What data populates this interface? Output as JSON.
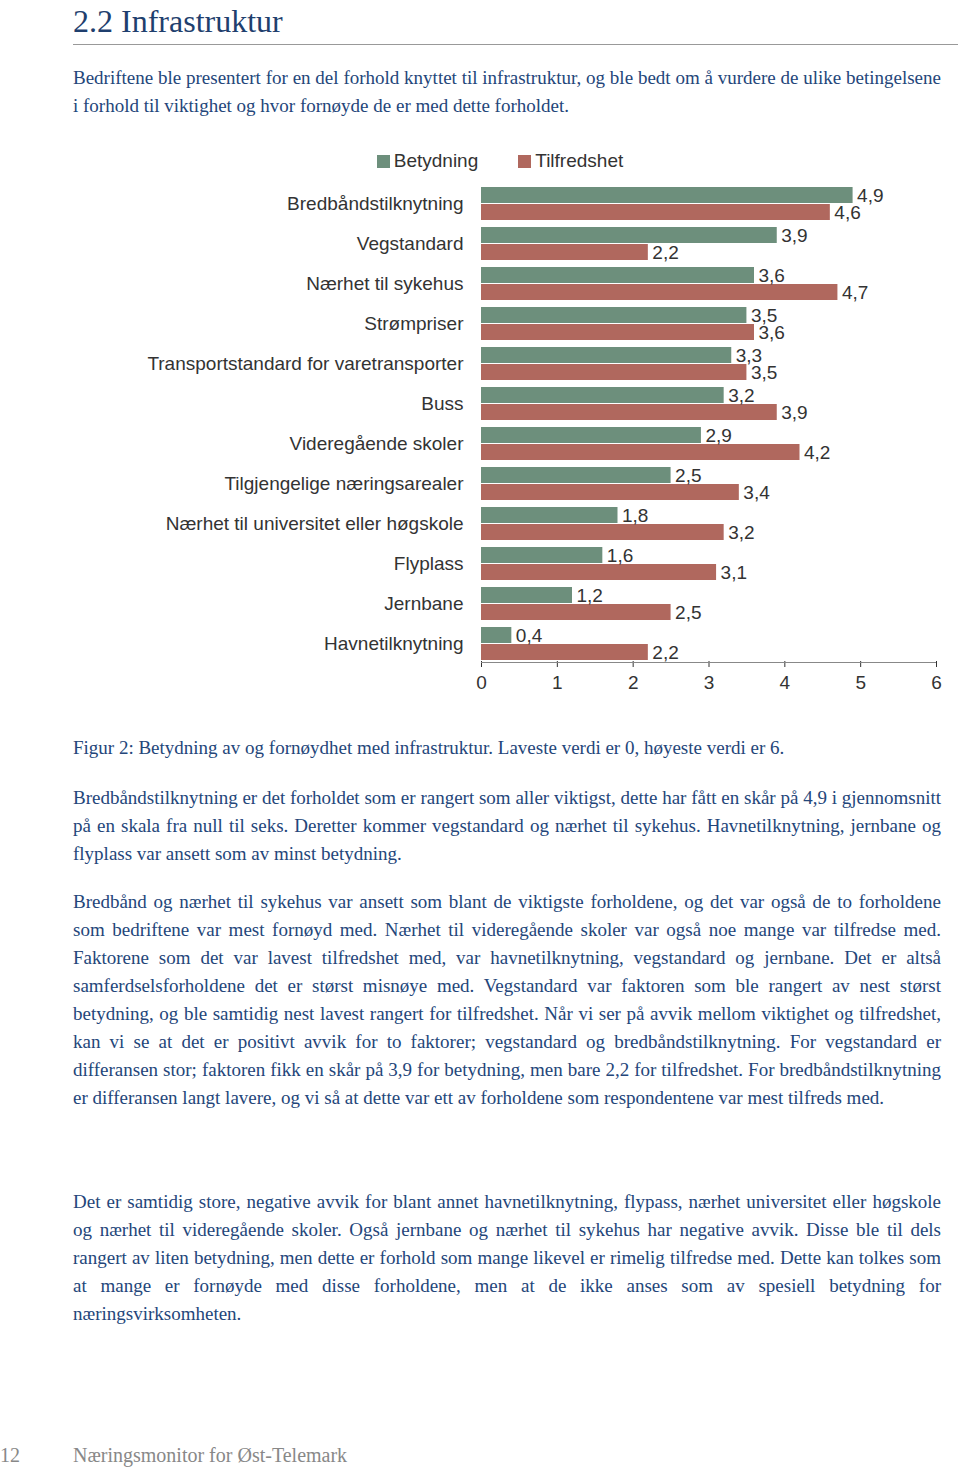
{
  "heading": "2.2 Infrastruktur",
  "intro": "Bedriftene ble presentert for en del forhold knyttet til infrastruktur, og ble bedt om å vurdere de ulike betingelsene i forhold til viktighet og hvor fornøyde de er med dette forholdet.",
  "chart_data": {
    "type": "bar",
    "orientation": "horizontal",
    "categories": [
      "Bredbåndstilknytning",
      "Vegstandard",
      "Nærhet til sykehus",
      "Strømpriser",
      "Transportstandard for varetransporter",
      "Buss",
      "Videregående skoler",
      "Tilgjengelige næringsarealer",
      "Nærhet til universitet eller høgskole",
      "Flyplass",
      "Jernbane",
      "Havnetilknytning"
    ],
    "series": [
      {
        "name": "Betydning",
        "color": "#6d8f7c",
        "values": [
          4.9,
          3.9,
          3.6,
          3.5,
          3.3,
          3.2,
          2.9,
          2.5,
          1.8,
          1.6,
          1.2,
          0.4
        ],
        "value_labels": [
          "4,9",
          "3,9",
          "3,6",
          "3,5",
          "3,3",
          "3,2",
          "2,9",
          "2,5",
          "1,8",
          "1,6",
          "1,2",
          "0,4"
        ]
      },
      {
        "name": "Tilfredshet",
        "color": "#b0685e",
        "values": [
          4.6,
          2.2,
          4.7,
          3.6,
          3.5,
          3.9,
          4.2,
          3.4,
          3.2,
          3.1,
          2.5,
          2.2
        ],
        "value_labels": [
          "4,6",
          "2,2",
          "4,7",
          "3,6",
          "3,5",
          "3,9",
          "4,2",
          "3,4",
          "3,2",
          "3,1",
          "2,5",
          "2,2"
        ]
      }
    ],
    "xlim": [
      0,
      6
    ],
    "xticks": [
      0,
      1,
      2,
      3,
      4,
      5,
      6
    ],
    "data_labels": true,
    "legend": "top",
    "grid": false
  },
  "caption": "Figur 2: Betydning av og fornøydhet med infrastruktur. Laveste verdi er 0, høyeste verdi er 6.",
  "paragraphs": [
    "Bredbåndstilknytning er det forholdet som er rangert som aller viktigst, dette har fått en skår på 4,9 i gjennomsnitt på en skala fra null til seks. Deretter kommer vegstandard og nærhet til sykehus. Havnetilknytning, jernbane og flyplass var ansett som av minst betydning.",
    "Bredbånd og nærhet til sykehus var ansett som blant de viktigste forholdene, og det var også de to forholdene som bedriftene var mest fornøyd med. Nærhet til videregående skoler var også noe mange var tilfredse med. Faktorene som det var lavest tilfredshet med, var havnetilknytning, vegstandard og jernbane. Det er altså samferdselsforholdene det er størst misnøye med. Vegstandard var faktoren som ble rangert av nest størst betydning, og ble samtidig nest lavest rangert for tilfredshet. Når vi ser på avvik mellom viktighet og tilfredshet, kan vi se at det er positivt avvik for to faktorer; vegstandard og bredbåndstilknytning. For vegstandard er differansen stor; faktoren fikk en skår på 3,9 for betydning, men bare 2,2 for tilfredshet. For bredbåndstilknytning er differansen langt lavere, og vi så at dette var ett av forholdene som respondentene var mest tilfreds med.",
    "Det er samtidig store, negative avvik for blant annet havnetilknytning, flypass, nærhet universitet eller høgskole og nærhet til videregående skoler. Også jernbane og nærhet til sykehus har negative avvik. Disse ble til dels rangert av liten betydning, men dette er forhold som mange likevel er rimelig tilfredse med. Dette kan tolkes som at mange er fornøyde med disse forholdene, men at de ikke anses som av spesiell betydning for næringsvirksomheten."
  ],
  "footer": {
    "page": "12",
    "title": "Næringsmonitor for Øst-Telemark"
  }
}
